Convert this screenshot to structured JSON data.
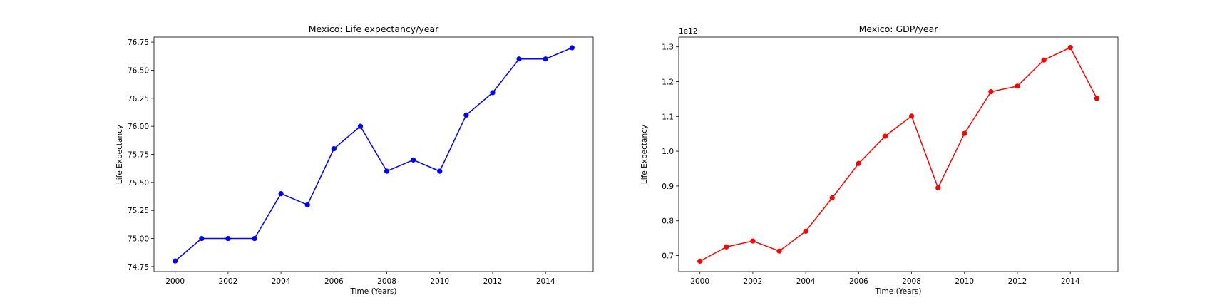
{
  "chart_data": [
    {
      "type": "line",
      "title": "Mexico: Life expectancy/year",
      "xlabel": "Time (Years)",
      "ylabel": "Life Expectancy",
      "xlim": [
        1999.2,
        2015.8
      ],
      "ylim": [
        74.705,
        76.795
      ],
      "xticks": [
        2000,
        2002,
        2004,
        2006,
        2008,
        2010,
        2012,
        2014
      ],
      "xtick_labels": [
        "2000",
        "2002",
        "2004",
        "2006",
        "2008",
        "2010",
        "2012",
        "2014"
      ],
      "yticks": [
        74.75,
        75.0,
        75.25,
        75.5,
        75.75,
        76.0,
        76.25,
        76.5,
        76.75
      ],
      "ytick_labels": [
        "74.75",
        "75.00",
        "75.25",
        "75.50",
        "75.75",
        "76.00",
        "76.25",
        "76.50",
        "76.75"
      ],
      "y_offset_label": "",
      "grid": false,
      "color": "#0000ff",
      "marker": "circle",
      "x": [
        2000,
        2001,
        2002,
        2003,
        2004,
        2005,
        2006,
        2007,
        2008,
        2009,
        2010,
        2011,
        2012,
        2013,
        2014,
        2015
      ],
      "y": [
        74.8,
        75.0,
        75.0,
        75.0,
        75.4,
        75.3,
        75.8,
        76.0,
        75.6,
        75.7,
        75.6,
        76.1,
        76.3,
        76.6,
        76.6,
        76.7
      ]
    },
    {
      "type": "line",
      "title": "Mexico: GDP/year",
      "xlabel": "Time (Years)",
      "ylabel": "Life Expectancy",
      "xlim": [
        1999.2,
        2015.8
      ],
      "ylim": [
        0.654,
        1.328
      ],
      "xticks": [
        2000,
        2002,
        2004,
        2006,
        2008,
        2010,
        2012,
        2014
      ],
      "xtick_labels": [
        "2000",
        "2002",
        "2004",
        "2006",
        "2008",
        "2010",
        "2012",
        "2014"
      ],
      "yticks": [
        0.7,
        0.8,
        0.9,
        1.0,
        1.1,
        1.2,
        1.3
      ],
      "ytick_labels": [
        "0.7",
        "0.8",
        "0.9",
        "1.0",
        "1.1",
        "1.2",
        "1.3"
      ],
      "y_offset_label": "1e12",
      "grid": false,
      "color": "#ff0000",
      "marker": "circle",
      "x": [
        2000,
        2001,
        2002,
        2003,
        2004,
        2005,
        2006,
        2007,
        2008,
        2009,
        2010,
        2011,
        2012,
        2013,
        2014,
        2015
      ],
      "y": [
        0.684,
        0.725,
        0.742,
        0.713,
        0.77,
        0.866,
        0.965,
        1.043,
        1.101,
        0.895,
        1.051,
        1.171,
        1.187,
        1.262,
        1.298,
        1.152
      ]
    }
  ]
}
